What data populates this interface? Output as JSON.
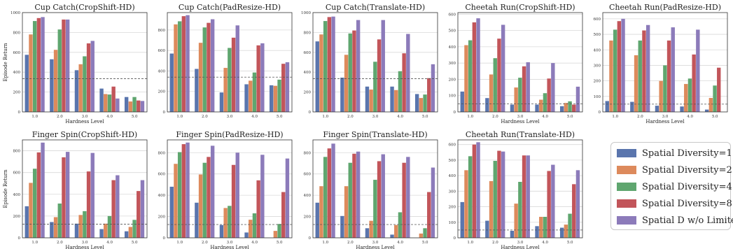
{
  "chart_data": [
    {
      "type": "bar",
      "title": "Cup Catch(CropShift-HD)",
      "xlabel": "Hardness Level",
      "ylabel": "Episode Return",
      "categories": [
        "1.0",
        "2.0",
        "3.0",
        "4.0",
        "5.0"
      ],
      "ylim": [
        0,
        1000
      ],
      "yticks": [
        0,
        200,
        400,
        600,
        800,
        1000
      ],
      "baseline": 335,
      "series": [
        {
          "name": "Spatial Diversity=1",
          "values": [
            575,
            530,
            420,
            235,
            150
          ]
        },
        {
          "name": "Spatial Diversity=2",
          "values": [
            780,
            625,
            480,
            180,
            105
          ]
        },
        {
          "name": "Spatial Diversity=4",
          "values": [
            915,
            830,
            560,
            175,
            150
          ]
        },
        {
          "name": "Spatial Diversity=8",
          "values": [
            945,
            930,
            690,
            255,
            115
          ]
        },
        {
          "name": "Spatial D w/o Limited",
          "values": [
            955,
            930,
            715,
            135,
            110
          ]
        }
      ]
    },
    {
      "type": "bar",
      "title": "Cup Catch(PadResize-HD)",
      "xlabel": "",
      "ylabel": "",
      "categories": [
        "1.0",
        "2.0",
        "3.0",
        "4.0",
        "5.0"
      ],
      "ylim": [
        0,
        970
      ],
      "yticks": [
        0,
        200,
        400,
        600,
        800
      ],
      "baseline": 340,
      "series": [
        {
          "name": "Spatial Diversity=1",
          "values": [
            570,
            420,
            190,
            270,
            260
          ]
        },
        {
          "name": "Spatial Diversity=2",
          "values": [
            855,
            675,
            430,
            305,
            255
          ]
        },
        {
          "name": "Spatial Diversity=4",
          "values": [
            885,
            825,
            625,
            385,
            315
          ]
        },
        {
          "name": "Spatial Diversity=8",
          "values": [
            935,
            870,
            725,
            650,
            470
          ]
        },
        {
          "name": "Spatial D w/o Limited",
          "values": [
            945,
            905,
            845,
            670,
            485
          ]
        }
      ]
    },
    {
      "type": "bar",
      "title": "Cup Catch(Translate-HD)",
      "xlabel": "",
      "ylabel": "",
      "categories": [
        "1.0",
        "2.0",
        "3.0",
        "4.0",
        "5.0"
      ],
      "ylim": [
        0,
        1000
      ],
      "yticks": [
        0,
        200,
        400,
        600,
        800,
        1000
      ],
      "baseline": 335,
      "series": [
        {
          "name": "Spatial Diversity=1",
          "values": [
            710,
            345,
            255,
            255,
            180
          ]
        },
        {
          "name": "Spatial Diversity=2",
          "values": [
            780,
            575,
            225,
            220,
            140
          ]
        },
        {
          "name": "Spatial Diversity=4",
          "values": [
            915,
            790,
            505,
            410,
            175
          ]
        },
        {
          "name": "Spatial Diversity=8",
          "values": [
            955,
            820,
            730,
            590,
            340
          ]
        },
        {
          "name": "Spatial D w/o Limited",
          "values": [
            960,
            925,
            925,
            785,
            480
          ]
        }
      ]
    },
    {
      "type": "bar",
      "title": "Cheetah Run(CropShift-HD)",
      "xlabel": "Hardness Level",
      "ylabel": "",
      "categories": [
        "1.0",
        "2.0",
        "3.0",
        "4.0",
        "5.0"
      ],
      "ylim": [
        0,
        610
      ],
      "yticks": [
        0,
        100,
        200,
        300,
        400,
        500,
        600
      ],
      "baseline": 50,
      "series": [
        {
          "name": "Spatial Diversity=1",
          "values": [
            125,
            85,
            45,
            45,
            35
          ]
        },
        {
          "name": "Spatial Diversity=2",
          "values": [
            410,
            230,
            150,
            75,
            55
          ]
        },
        {
          "name": "Spatial Diversity=4",
          "values": [
            440,
            330,
            210,
            115,
            65
          ]
        },
        {
          "name": "Spatial Diversity=8",
          "values": [
            550,
            450,
            280,
            205,
            45
          ]
        },
        {
          "name": "Spatial D w/o Limited",
          "values": [
            575,
            535,
            305,
            300,
            155
          ]
        }
      ]
    },
    {
      "type": "bar",
      "title": "Cheetah Run(PadResize-HD)",
      "xlabel": "Hardness Level",
      "ylabel": "",
      "categories": [
        "1.0",
        "2.0",
        "3.0",
        "4.0",
        "5.0"
      ],
      "ylim": [
        0,
        640
      ],
      "yticks": [
        0,
        100,
        200,
        300,
        400,
        500,
        600
      ],
      "baseline": 50,
      "series": [
        {
          "name": "Spatial Diversity=1",
          "values": [
            70,
            65,
            40,
            35,
            15
          ]
        },
        {
          "name": "Spatial Diversity=2",
          "values": [
            460,
            365,
            200,
            180,
            90
          ]
        },
        {
          "name": "Spatial Diversity=4",
          "values": [
            530,
            460,
            300,
            215,
            170
          ]
        },
        {
          "name": "Spatial Diversity=8",
          "values": [
            585,
            525,
            460,
            370,
            285
          ]
        },
        {
          "name": "Spatial D w/o Limited",
          "values": [
            600,
            560,
            545,
            530,
            0
          ]
        }
      ]
    },
    {
      "type": "bar",
      "title": "Finger Spin(CropShift-HD)",
      "xlabel": "Hardness Level",
      "ylabel": "Episode Return",
      "categories": [
        "1.0",
        "2.0",
        "3.0",
        "4.0",
        "5.0"
      ],
      "ylim": [
        0,
        900
      ],
      "yticks": [
        0,
        200,
        400,
        600,
        800
      ],
      "baseline": 125,
      "series": [
        {
          "name": "Spatial Diversity=1",
          "values": [
            290,
            145,
            130,
            80,
            60
          ]
        },
        {
          "name": "Spatial Diversity=2",
          "values": [
            505,
            190,
            210,
            130,
            100
          ]
        },
        {
          "name": "Spatial Diversity=4",
          "values": [
            635,
            315,
            245,
            200,
            165
          ]
        },
        {
          "name": "Spatial Diversity=8",
          "values": [
            785,
            740,
            610,
            530,
            430
          ]
        },
        {
          "name": "Spatial D w/o Limited",
          "values": [
            875,
            790,
            780,
            575,
            530
          ]
        }
      ]
    },
    {
      "type": "bar",
      "title": "Finger Spin(PadResize-HD)",
      "xlabel": "Hardness Level",
      "ylabel": "",
      "categories": [
        "1.0",
        "2.0",
        "3.0",
        "4.0",
        "5.0"
      ],
      "ylim": [
        0,
        920
      ],
      "yticks": [
        0,
        200,
        400,
        600,
        800
      ],
      "baseline": 125,
      "series": [
        {
          "name": "Spatial Diversity=1",
          "values": [
            480,
            330,
            120,
            50,
            0
          ]
        },
        {
          "name": "Spatial Diversity=2",
          "values": [
            695,
            595,
            280,
            170,
            65
          ]
        },
        {
          "name": "Spatial Diversity=4",
          "values": [
            805,
            705,
            300,
            230,
            130
          ]
        },
        {
          "name": "Spatial Diversity=8",
          "values": [
            880,
            760,
            685,
            540,
            430
          ]
        },
        {
          "name": "Spatial D w/o Limited",
          "values": [
            895,
            865,
            800,
            780,
            745
          ]
        }
      ]
    },
    {
      "type": "bar",
      "title": "Finger Spin(Translate-HD)",
      "xlabel": "Hardness Level",
      "ylabel": "",
      "categories": [
        "1.0",
        "2.0",
        "3.0",
        "4.0",
        "5.0"
      ],
      "ylim": [
        0,
        920
      ],
      "yticks": [
        0,
        200,
        400,
        600,
        800
      ],
      "baseline": 125,
      "series": [
        {
          "name": "Spatial Diversity=1",
          "values": [
            330,
            205,
            90,
            30,
            0
          ]
        },
        {
          "name": "Spatial Diversity=2",
          "values": [
            485,
            485,
            160,
            120,
            40
          ]
        },
        {
          "name": "Spatial Diversity=4",
          "values": [
            760,
            705,
            545,
            240,
            90
          ]
        },
        {
          "name": "Spatial Diversity=8",
          "values": [
            840,
            790,
            720,
            705,
            430
          ]
        },
        {
          "name": "Spatial D w/o Limited",
          "values": [
            885,
            810,
            785,
            760,
            660
          ]
        }
      ]
    },
    {
      "type": "bar",
      "title": "Cheetah Run(Translate-HD)",
      "xlabel": "Hardness Level",
      "ylabel": "",
      "categories": [
        "1.0",
        "2.0",
        "3.0",
        "4.0",
        "5.0"
      ],
      "ylim": [
        0,
        630
      ],
      "yticks": [
        0,
        100,
        200,
        300,
        400,
        500,
        600
      ],
      "baseline": 50,
      "series": [
        {
          "name": "Spatial Diversity=1",
          "values": [
            230,
            110,
            45,
            75,
            65
          ]
        },
        {
          "name": "Spatial Diversity=2",
          "values": [
            435,
            365,
            220,
            135,
            85
          ]
        },
        {
          "name": "Spatial Diversity=4",
          "values": [
            525,
            495,
            360,
            135,
            155
          ]
        },
        {
          "name": "Spatial Diversity=8",
          "values": [
            600,
            560,
            530,
            430,
            345
          ]
        },
        {
          "name": "Spatial D w/o Limited",
          "values": [
            615,
            555,
            530,
            470,
            435
          ]
        }
      ]
    }
  ],
  "colors": [
    "#5a75ad",
    "#dd8a5c",
    "#5fa66f",
    "#c2555a",
    "#8c7bba"
  ],
  "legend": {
    "position": "lower-right",
    "labels": [
      "Spatial Diversity=1",
      "Spatial Diversity=2",
      "Spatial Diversity=4",
      "Spatial Diversity=8",
      "Spatial D w/o Limited"
    ]
  }
}
